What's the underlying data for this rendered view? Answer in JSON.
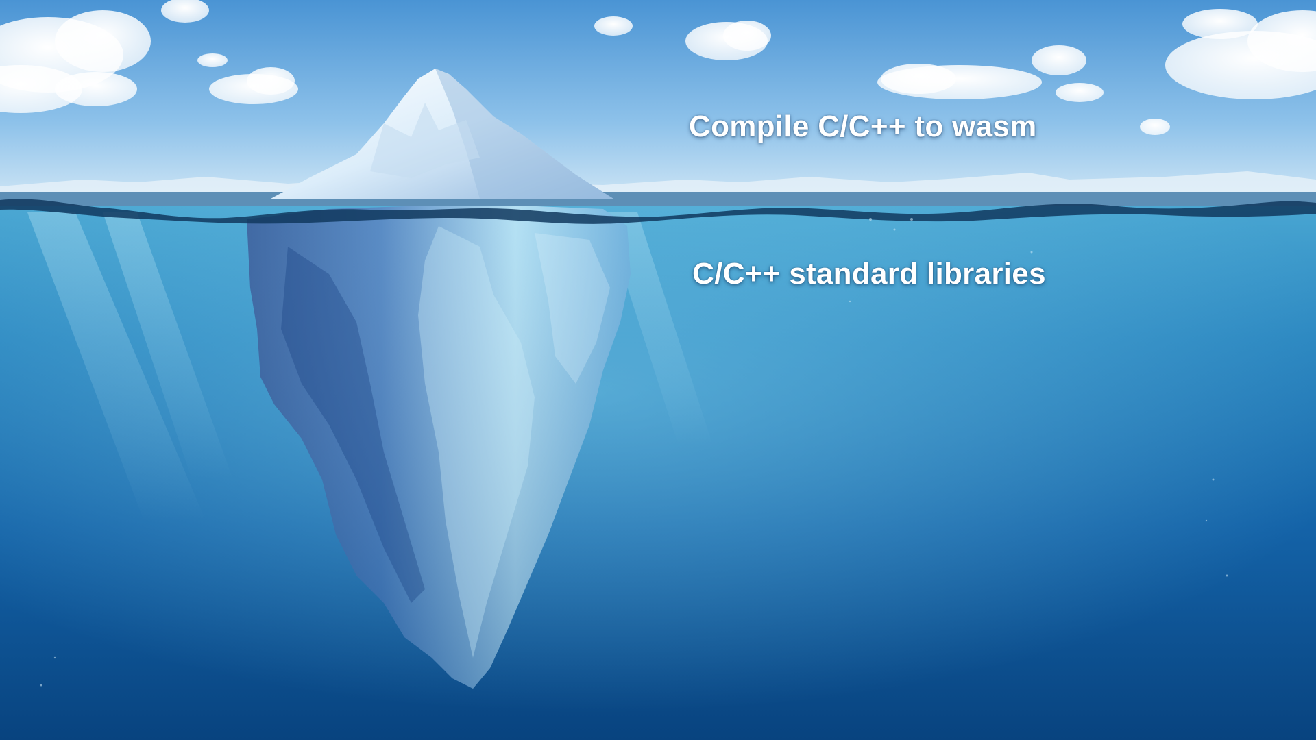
{
  "slide": {
    "caption_above_water": "Compile C/C++ to wasm",
    "caption_below_water": "C/C++ standard libraries"
  },
  "colors": {
    "sky_top": "#4f9ad8",
    "sky_bottom": "#cfe6f6",
    "water_top": "#3f9ccc",
    "water_deep": "#0a4a8e",
    "ice_light": "#f4fbff",
    "ice_shadow": "#6f9fd0",
    "caption_text": "#ffffff"
  }
}
